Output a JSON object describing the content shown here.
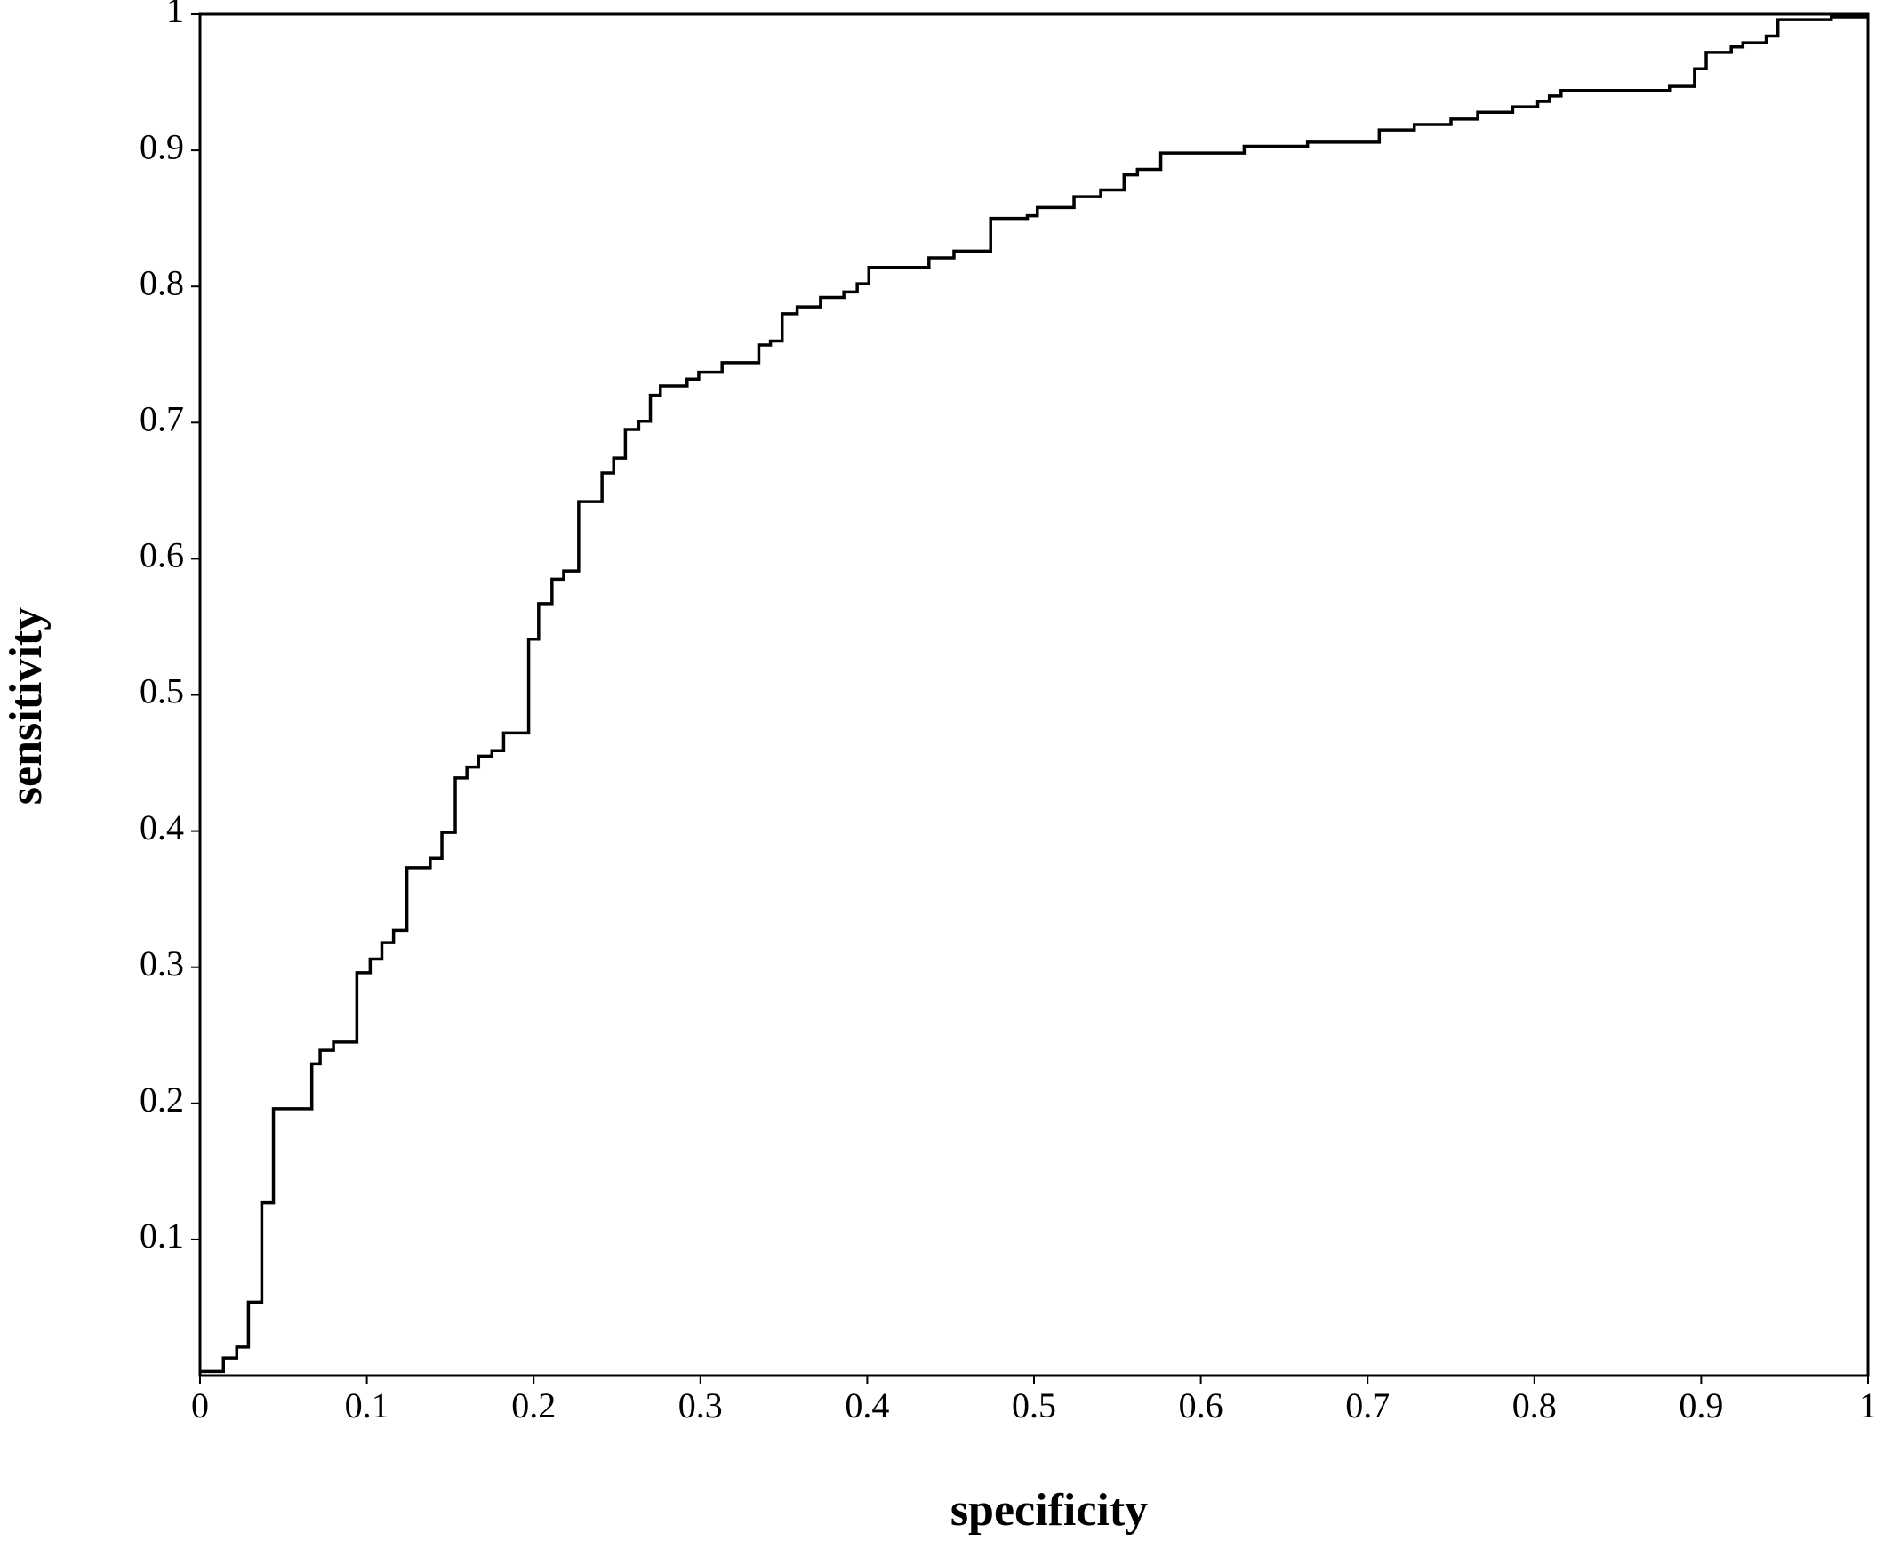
{
  "chart_data": {
    "type": "line",
    "xlabel": "specificity",
    "ylabel": "sensitivity",
    "x": [
      0,
      0.014,
      0.014,
      0.022,
      0.022,
      0.029,
      0.029,
      0.037,
      0.037,
      0.044,
      0.044,
      0.067,
      0.067,
      0.072,
      0.072,
      0.08,
      0.08,
      0.094,
      0.094,
      0.102,
      0.102,
      0.109,
      0.109,
      0.116,
      0.116,
      0.124,
      0.124,
      0.138,
      0.138,
      0.145,
      0.145,
      0.153,
      0.153,
      0.16,
      0.16,
      0.167,
      0.167,
      0.175,
      0.175,
      0.182,
      0.182,
      0.197,
      0.197,
      0.203,
      0.203,
      0.211,
      0.211,
      0.218,
      0.218,
      0.227,
      0.227,
      0.241,
      0.241,
      0.248,
      0.248,
      0.255,
      0.255,
      0.263,
      0.263,
      0.27,
      0.27,
      0.276,
      0.276,
      0.292,
      0.292,
      0.299,
      0.299,
      0.313,
      0.313,
      0.335,
      0.335,
      0.342,
      0.342,
      0.349,
      0.349,
      0.358,
      0.358,
      0.372,
      0.372,
      0.386,
      0.386,
      0.394,
      0.394,
      0.401,
      0.401,
      0.437,
      0.437,
      0.452,
      0.452,
      0.474,
      0.474,
      0.496,
      0.496,
      0.502,
      0.502,
      0.524,
      0.524,
      0.54,
      0.54,
      0.554,
      0.554,
      0.562,
      0.562,
      0.576,
      0.576,
      0.626,
      0.626,
      0.664,
      0.664,
      0.707,
      0.707,
      0.728,
      0.728,
      0.75,
      0.75,
      0.766,
      0.766,
      0.787,
      0.787,
      0.802,
      0.802,
      0.809,
      0.809,
      0.816,
      0.816,
      0.881,
      0.881,
      0.896,
      0.896,
      0.903,
      0.903,
      0.918,
      0.918,
      0.925,
      0.925,
      0.939,
      0.939,
      0.946,
      0.946,
      0.978,
      0.978,
      1
    ],
    "values": [
      0.003,
      0.003,
      0.013,
      0.013,
      0.021,
      0.021,
      0.054,
      0.054,
      0.127,
      0.127,
      0.196,
      0.196,
      0.229,
      0.229,
      0.239,
      0.239,
      0.245,
      0.245,
      0.296,
      0.296,
      0.306,
      0.306,
      0.318,
      0.318,
      0.327,
      0.327,
      0.373,
      0.373,
      0.38,
      0.38,
      0.399,
      0.399,
      0.439,
      0.439,
      0.447,
      0.447,
      0.455,
      0.455,
      0.459,
      0.459,
      0.472,
      0.472,
      0.541,
      0.541,
      0.567,
      0.567,
      0.585,
      0.585,
      0.591,
      0.591,
      0.642,
      0.642,
      0.663,
      0.663,
      0.674,
      0.674,
      0.695,
      0.695,
      0.701,
      0.701,
      0.72,
      0.72,
      0.727,
      0.727,
      0.732,
      0.732,
      0.737,
      0.737,
      0.744,
      0.744,
      0.757,
      0.757,
      0.76,
      0.76,
      0.78,
      0.78,
      0.785,
      0.785,
      0.792,
      0.792,
      0.796,
      0.796,
      0.802,
      0.802,
      0.814,
      0.814,
      0.821,
      0.821,
      0.826,
      0.826,
      0.85,
      0.85,
      0.852,
      0.852,
      0.858,
      0.858,
      0.866,
      0.866,
      0.871,
      0.871,
      0.882,
      0.882,
      0.886,
      0.886,
      0.898,
      0.898,
      0.903,
      0.903,
      0.906,
      0.906,
      0.915,
      0.915,
      0.919,
      0.919,
      0.923,
      0.923,
      0.928,
      0.928,
      0.932,
      0.932,
      0.936,
      0.936,
      0.94,
      0.94,
      0.944,
      0.944,
      0.947,
      0.947,
      0.96,
      0.96,
      0.972,
      0.972,
      0.976,
      0.976,
      0.979,
      0.979,
      0.984,
      0.984,
      0.996,
      0.996,
      0.998,
      0.998
    ],
    "color": "#000000",
    "xlim": [
      0,
      1
    ],
    "ylim": [
      0,
      1
    ],
    "xticks": [
      0,
      0.1,
      0.2,
      0.3,
      0.4,
      0.5,
      0.6,
      0.7,
      0.8,
      0.9,
      1
    ],
    "yticks": [
      0.1,
      0.2,
      0.3,
      0.4,
      0.5,
      0.6,
      0.7,
      0.8,
      0.9,
      1
    ],
    "grid": false
  }
}
